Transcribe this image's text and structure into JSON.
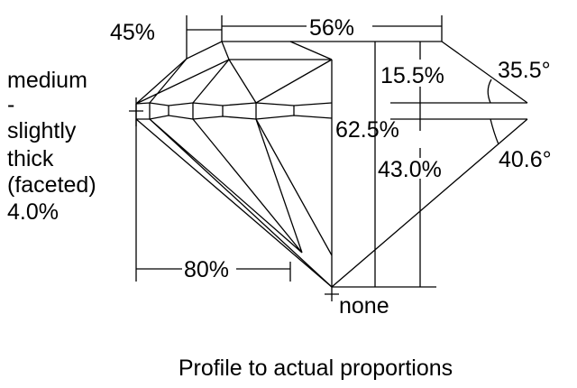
{
  "labels": {
    "crown_height_pct": "45%",
    "table_pct": "56%",
    "crown_depth": "15.5%",
    "crown_angle": "35.5°",
    "total_depth": "62.5%",
    "pavilion_depth": "43.0%",
    "pavilion_angle": "40.6°",
    "lower_half": "80%",
    "culet": "none",
    "girdle": [
      "medium",
      "-",
      "slightly",
      "thick",
      "(faceted)",
      "4.0%"
    ]
  },
  "caption": "Profile to actual proportions"
}
